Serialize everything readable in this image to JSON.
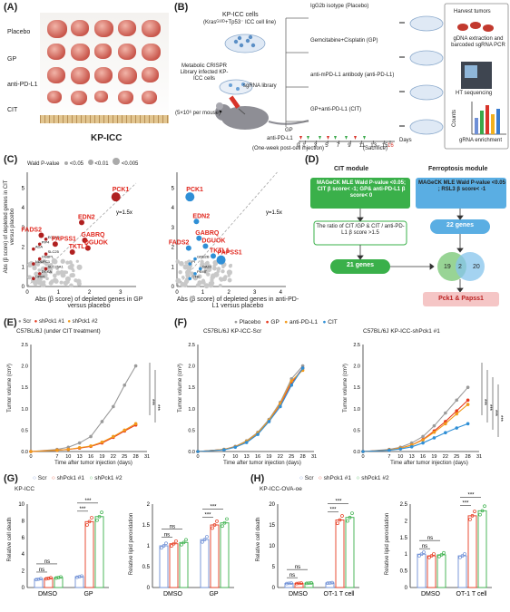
{
  "panels": {
    "A": "(A)",
    "B": "(B)",
    "C": "(C)",
    "D": "(D)",
    "E": "(E)",
    "F": "(F)",
    "G": "(G)",
    "H": "(H)"
  },
  "panelA": {
    "rows": [
      "Placebo",
      "GP",
      "anti-PD-L1",
      "CIT"
    ],
    "caption": "KP-ICC"
  },
  "panelB": {
    "cells_title": "KP-ICC cells",
    "cells_sub": "(Krasᴳ¹²ᴰ+Tp53⁻ ICC cell line)",
    "library_label": "sgRNA library",
    "infected_label": "Metabolic CRISPR Library infected KP-ICC cells",
    "dose_label": "(5×10⁶ per mouse)",
    "arms": [
      "IgG2b isotype (Placebo)",
      "Gemcitabine+Cisplatin (GP)",
      "anti-mPD-L1 antibody (anti-PD-L1)",
      "GP+anti-PD-L1 (CIT)"
    ],
    "gp_label": "GP",
    "pdl1_label": "anti-PD-L1",
    "timeline": [
      "0",
      "1",
      "3",
      "5",
      "7",
      "9",
      "11",
      "13",
      "15",
      "16"
    ],
    "days_label": "Days",
    "post_label": "(One-week post-cell injection)",
    "sacrifice_label": "(Sacrifice)",
    "harvest": "Harvest tumors",
    "extract": "gDNA extraction and barcoded sgRNA PCR",
    "ht": "HT sequencing",
    "counts": "Counts",
    "enrich": "gRNA enrichment"
  },
  "panelC": {
    "legend_title": "Wald P-value",
    "legend": [
      "<0.05",
      "<0.01",
      "<0.005"
    ],
    "left": {
      "ylabel": "Abs (β score) of depleted genes in CIT versus placebo",
      "xlabel": "Abs (β score) of depleted genes in GP versus placebo",
      "ref": "y=1.5x",
      "xticks": [
        "0",
        "1",
        "2",
        "3"
      ],
      "yticks": [
        "0",
        "1",
        "2",
        "3",
        "4",
        "5"
      ],
      "genes": [
        "PCK1",
        "EDN2",
        "GABRQ",
        "FADS2",
        "DGUOK",
        "PAPSS1",
        "TKTL1"
      ],
      "small": [
        "DPM1",
        "DGKA",
        "SLC25A1",
        "NDUFC1",
        "OSBPL",
        "SLC25",
        "ADA",
        "PIP4",
        "EGLN3"
      ]
    },
    "right": {
      "xlabel": "Abs (β score) of depleted genes in anti-PD-L1 versus placebo",
      "ref": "y=1.5x",
      "xticks": [
        "0",
        "1",
        "2",
        "3",
        "4"
      ],
      "yticks": [
        "0",
        "1",
        "2",
        "3",
        "4",
        "5"
      ],
      "genes": [
        "PCK1",
        "EDN2",
        "GABRQ",
        "DGUOK",
        "FADS2",
        "TKTL1",
        "PAPSS1"
      ],
      "small": [
        "CTH",
        "PEMT",
        "GAD1",
        "PI",
        "GRB2B"
      ]
    }
  },
  "panelD": {
    "cit_module": "CIT module",
    "fer_module": "Ferroptosis module",
    "cit_box": "MAGeCK MLE Wald P-value <0.05; CIT β score< -1; GP& anti-PD-L1 β score< 0",
    "fer_box": "MAGeCK MLE Wald P-value <0.05 ; RSL3 β score< -1",
    "ratio_box": "The ratio of CIT /GP & CIT / anti-PD-L1 β score >1.5",
    "genes21": "21 genes",
    "genes22": "22 genes",
    "venn": [
      "19",
      "2",
      "20"
    ],
    "result": "Pck1 & Papss1"
  },
  "panelE": {
    "legend": [
      "Scr",
      "shPck1 #1",
      "shPck1 #2"
    ],
    "colors": [
      "#9a9a9a",
      "#e63a1f",
      "#f29a1b"
    ],
    "subtitle": "C57BL/6J (under CIT treatment)",
    "ylabel": "Tumor volume (cm³)",
    "xlabel": "Time after tumor injection (days)",
    "sig": [
      "***",
      "***"
    ]
  },
  "panelF": {
    "legend": [
      "Placebo",
      "GP",
      "anti-PD-L1",
      "CIT"
    ],
    "colors": [
      "#9a9a9a",
      "#e63a1f",
      "#f29a1b",
      "#2f8fd6"
    ],
    "left_title": "C57BL/6J KP-ICC-Scr",
    "right_title": "C57BL/6J KP-ICC-shPck1 #1",
    "ylabel": "Tumor volume (cm³)",
    "xlabel": "Time after tumor injection (days)",
    "sig": [
      "***",
      "***",
      "***",
      "***"
    ]
  },
  "panelG": {
    "title": "KP-ICC",
    "legend": [
      "Scr",
      "shPck1 #1",
      "shPck1 #2"
    ],
    "left_ylabel": "Relative cell death",
    "right_ylabel": "Relative lipid peroxidation",
    "groups": [
      "DMSO",
      "GP"
    ],
    "sig": [
      "ns",
      "ns",
      "***",
      "***"
    ]
  },
  "panelH": {
    "title": "KP-ICC-OVA-oe",
    "legend": [
      "Scr",
      "shPck1 #1",
      "shPck1 #2"
    ],
    "left_ylabel": "Relative cell death",
    "right_ylabel": "Relative lipid peroxidation",
    "groups": [
      "DMSO",
      "OT-1 T cell"
    ],
    "sig": [
      "ns",
      "ns",
      "***",
      "***"
    ]
  },
  "chart_data": [
    {
      "type": "scatter",
      "panel": "C-left",
      "xlabel": "Abs (β score) of depleted genes in GP versus placebo",
      "ylabel": "Abs (β score) of depleted genes in CIT versus placebo",
      "xlim": [
        0,
        3.5
      ],
      "ylim": [
        0,
        5.8
      ],
      "points": [
        {
          "label": "PCK1",
          "x": 2.85,
          "y": 4.55,
          "p": "<0.005"
        },
        {
          "label": "EDN2",
          "x": 1.75,
          "y": 3.25,
          "p": "<0.01"
        },
        {
          "label": "GABRQ",
          "x": 1.85,
          "y": 2.35,
          "p": "<0.01"
        },
        {
          "label": "FADS2",
          "x": 0.45,
          "y": 2.6,
          "p": "<0.01"
        },
        {
          "label": "DGUOK",
          "x": 1.95,
          "y": 1.95,
          "p": "<0.01"
        },
        {
          "label": "PAPSS1",
          "x": 0.9,
          "y": 2.15,
          "p": "<0.01"
        },
        {
          "label": "TKTL1",
          "x": 1.45,
          "y": 1.75,
          "p": "<0.01"
        }
      ]
    },
    {
      "type": "scatter",
      "panel": "C-right",
      "xlabel": "Abs (β score) of depleted genes in anti-PD-L1 versus placebo",
      "xlim": [
        0,
        4.2
      ],
      "ylim": [
        0,
        5.8
      ],
      "points": [
        {
          "label": "PCK1",
          "x": 0.5,
          "y": 4.55,
          "p": "<0.005"
        },
        {
          "label": "EDN2",
          "x": 0.75,
          "y": 3.3,
          "p": "<0.01"
        },
        {
          "label": "GABRQ",
          "x": 0.85,
          "y": 2.45,
          "p": "<0.01"
        },
        {
          "label": "DGUOK",
          "x": 1.1,
          "y": 2.05,
          "p": "<0.01"
        },
        {
          "label": "FADS2",
          "x": 0.45,
          "y": 1.95,
          "p": "<0.01"
        },
        {
          "label": "TKTL1",
          "x": 1.4,
          "y": 1.55,
          "p": "<0.01"
        },
        {
          "label": "PAPSS1",
          "x": 1.7,
          "y": 1.35,
          "p": "<0.005"
        }
      ]
    },
    {
      "type": "line",
      "panel": "E",
      "x": [
        0,
        7,
        10,
        13,
        16,
        19,
        22,
        25,
        28
      ],
      "xticks": [
        0,
        7,
        10,
        13,
        16,
        19,
        22,
        25,
        28,
        31
      ],
      "ylim": [
        0,
        2.5
      ],
      "yticks": [
        0,
        0.5,
        1.0,
        1.5,
        2.0,
        2.5
      ],
      "series": [
        {
          "name": "Scr",
          "values": [
            0,
            0.05,
            0.1,
            0.2,
            0.35,
            0.7,
            1.05,
            1.55,
            2.0
          ]
        },
        {
          "name": "shPck1 #1",
          "values": [
            0,
            0.03,
            0.05,
            0.08,
            0.12,
            0.2,
            0.33,
            0.48,
            0.62
          ]
        },
        {
          "name": "shPck1 #2",
          "values": [
            0,
            0.03,
            0.05,
            0.09,
            0.13,
            0.22,
            0.35,
            0.5,
            0.65
          ]
        }
      ]
    },
    {
      "type": "line",
      "panel": "F-left",
      "x": [
        0,
        7,
        10,
        13,
        16,
        19,
        22,
        25,
        28
      ],
      "xticks": [
        0,
        7,
        10,
        13,
        16,
        19,
        22,
        25,
        28,
        31
      ],
      "ylim": [
        0,
        2.5
      ],
      "yticks": [
        0,
        0.5,
        1.0,
        1.5,
        2.0,
        2.5
      ],
      "series": [
        {
          "name": "Placebo",
          "values": [
            0,
            0.05,
            0.12,
            0.25,
            0.45,
            0.75,
            1.15,
            1.7,
            2.0
          ]
        },
        {
          "name": "GP",
          "values": [
            0,
            0.05,
            0.11,
            0.23,
            0.42,
            0.72,
            1.1,
            1.6,
            1.95
          ]
        },
        {
          "name": "anti-PD-L1",
          "values": [
            0,
            0.05,
            0.11,
            0.24,
            0.43,
            0.73,
            1.12,
            1.65,
            1.9
          ]
        },
        {
          "name": "CIT",
          "values": [
            0,
            0.04,
            0.1,
            0.21,
            0.4,
            0.7,
            1.05,
            1.55,
            1.95
          ]
        }
      ]
    },
    {
      "type": "line",
      "panel": "F-right",
      "x": [
        0,
        7,
        10,
        13,
        16,
        19,
        22,
        25,
        28
      ],
      "xticks": [
        0,
        7,
        10,
        13,
        16,
        19,
        22,
        25,
        28,
        31
      ],
      "ylim": [
        0,
        2.5
      ],
      "yticks": [
        0,
        0.5,
        1.0,
        1.5,
        2.0,
        2.5
      ],
      "series": [
        {
          "name": "Placebo",
          "values": [
            0,
            0.05,
            0.1,
            0.2,
            0.35,
            0.6,
            0.9,
            1.2,
            1.5
          ]
        },
        {
          "name": "GP",
          "values": [
            0,
            0.04,
            0.08,
            0.15,
            0.28,
            0.48,
            0.7,
            0.95,
            1.2
          ]
        },
        {
          "name": "anti-PD-L1",
          "values": [
            0,
            0.04,
            0.08,
            0.15,
            0.27,
            0.45,
            0.65,
            0.88,
            1.1
          ]
        },
        {
          "name": "CIT",
          "values": [
            0,
            0.03,
            0.06,
            0.11,
            0.2,
            0.32,
            0.44,
            0.55,
            0.65
          ]
        }
      ]
    },
    {
      "type": "bar",
      "panel": "G-left",
      "categories": [
        "DMSO",
        "GP"
      ],
      "ylim": [
        0,
        10
      ],
      "yticks": [
        0,
        2,
        4,
        6,
        8,
        10
      ],
      "series": [
        {
          "name": "Scr",
          "values": [
            1.0,
            1.3
          ]
        },
        {
          "name": "shPck1 #1",
          "values": [
            1.1,
            7.9
          ]
        },
        {
          "name": "shPck1 #2",
          "values": [
            1.2,
            8.5
          ]
        }
      ]
    },
    {
      "type": "bar",
      "panel": "G-right",
      "categories": [
        "DMSO",
        "GP"
      ],
      "ylim": [
        0,
        2.0
      ],
      "yticks": [
        0,
        0.5,
        1.0,
        1.5,
        2.0
      ],
      "series": [
        {
          "name": "Scr",
          "values": [
            1.0,
            1.15
          ]
        },
        {
          "name": "shPck1 #1",
          "values": [
            1.05,
            1.5
          ]
        },
        {
          "name": "shPck1 #2",
          "values": [
            1.08,
            1.55
          ]
        }
      ]
    },
    {
      "type": "bar",
      "panel": "H-left",
      "categories": [
        "DMSO",
        "OT-1 T cell"
      ],
      "ylim": [
        0,
        20
      ],
      "yticks": [
        0,
        5,
        10,
        15,
        20
      ],
      "series": [
        {
          "name": "Scr",
          "values": [
            1.0,
            1.1
          ]
        },
        {
          "name": "shPck1 #1",
          "values": [
            1.0,
            16.2
          ]
        },
        {
          "name": "shPck1 #2",
          "values": [
            1.05,
            16.8
          ]
        }
      ]
    },
    {
      "type": "bar",
      "panel": "H-right",
      "categories": [
        "DMSO",
        "OT-1 T cell"
      ],
      "ylim": [
        0,
        2.5
      ],
      "yticks": [
        0,
        0.5,
        1.0,
        1.5,
        2.0,
        2.5
      ],
      "series": [
        {
          "name": "Scr",
          "values": [
            1.0,
            0.95
          ]
        },
        {
          "name": "shPck1 #1",
          "values": [
            0.95,
            2.15
          ]
        },
        {
          "name": "shPck1 #2",
          "values": [
            0.98,
            2.3
          ]
        }
      ]
    }
  ]
}
